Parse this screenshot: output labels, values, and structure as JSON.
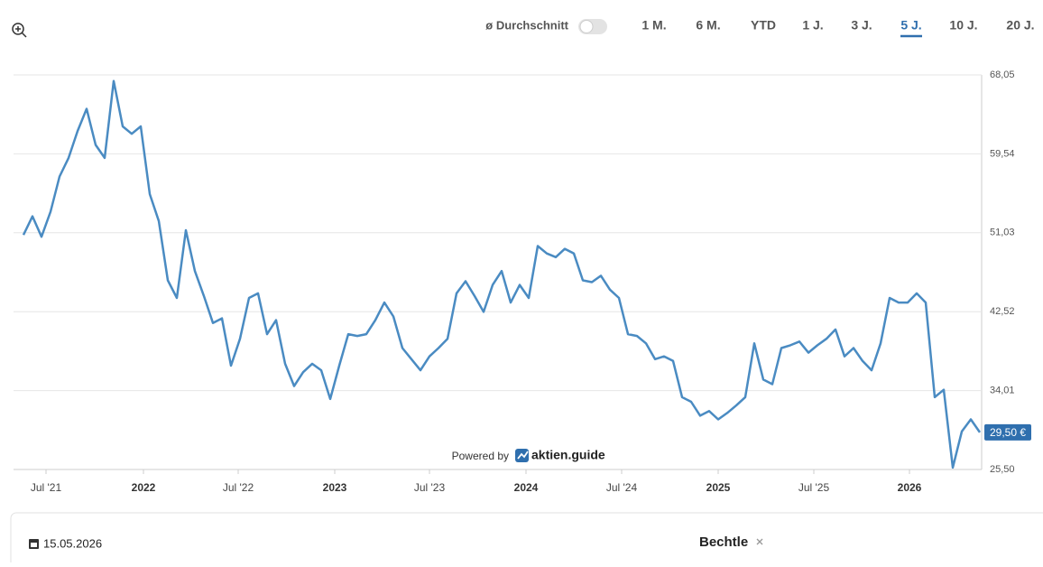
{
  "chart_data": {
    "type": "line",
    "color": "#4a8bc2",
    "values": [
      50.8,
      52.8,
      50.6,
      53.3,
      57.1,
      59.1,
      62.0,
      64.4,
      60.5,
      59.1,
      67.4,
      62.5,
      61.7,
      62.5,
      55.2,
      52.3,
      45.9,
      44.0,
      51.3,
      46.9,
      44.2,
      41.3,
      41.8,
      36.7,
      39.6,
      44.0,
      44.5,
      40.1,
      41.6,
      36.9,
      34.5,
      36.0,
      36.9,
      36.2,
      33.1,
      36.7,
      40.1,
      39.9,
      40.1,
      41.6,
      43.5,
      42.0,
      38.6,
      37.4,
      36.2,
      37.7,
      38.6,
      39.6,
      44.5,
      45.8,
      44.2,
      42.5,
      45.4,
      46.9,
      43.5,
      45.4,
      44.0,
      49.6,
      48.8,
      48.4,
      49.3,
      48.8,
      45.9,
      45.7,
      46.4,
      44.9,
      44.0,
      40.1,
      39.9,
      39.1,
      37.4,
      37.7,
      37.2,
      33.3,
      32.8,
      31.3,
      31.8,
      30.9,
      31.6,
      32.4,
      33.3,
      39.1,
      35.2,
      34.7,
      38.6,
      38.9,
      39.3,
      38.1,
      38.9,
      39.6,
      40.6,
      37.7,
      38.6,
      37.2,
      36.2,
      39.1,
      44.0,
      43.5,
      43.5,
      44.5,
      43.5,
      33.3,
      34.1,
      25.7,
      29.6,
      30.9,
      29.5
    ],
    "last_value_label": "29,50 €",
    "xlim": [
      0,
      106
    ],
    "xticks": [
      {
        "value": 2.5,
        "label": "Jul '21"
      },
      {
        "value": 13.3,
        "label": "2022"
      },
      {
        "value": 23.8,
        "label": "Jul '22"
      },
      {
        "value": 34.5,
        "label": "2023"
      },
      {
        "value": 45,
        "label": "Jul '23"
      },
      {
        "value": 55.7,
        "label": "2024"
      },
      {
        "value": 66.3,
        "label": "Jul '24"
      },
      {
        "value": 77,
        "label": "2025"
      },
      {
        "value": 87.6,
        "label": "Jul '25"
      },
      {
        "value": 98.2,
        "label": "2026"
      }
    ],
    "ylim": [
      25.5,
      68.05
    ],
    "yticks": [
      {
        "value": 25.5,
        "label": "25,50"
      },
      {
        "value": 34.01,
        "label": "34,01"
      },
      {
        "value": 42.52,
        "label": "42,52"
      },
      {
        "value": 51.03,
        "label": "51,03"
      },
      {
        "value": 59.54,
        "label": "59,54"
      },
      {
        "value": 68.05,
        "label": "68,05"
      }
    ],
    "grid": true
  },
  "controls": {
    "average_toggle": "ø Durchschnitt",
    "ranges": [
      "1 M.",
      "6 M.",
      "YTD",
      "1 J.",
      "3 J.",
      "5 J.",
      "10 J.",
      "20 J."
    ],
    "active_range": 5
  },
  "branding": {
    "powered_by": "Powered by",
    "brand": "aktien.guide"
  },
  "footer": {
    "date": "15.05.2026",
    "name": "Bechtle"
  }
}
